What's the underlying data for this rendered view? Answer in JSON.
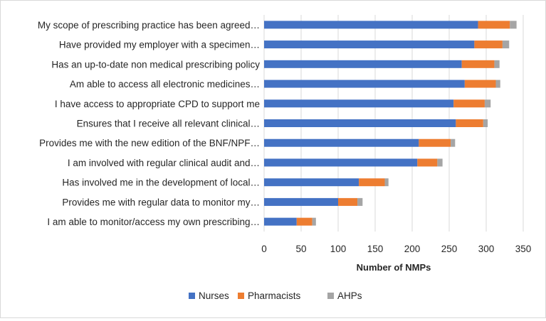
{
  "chart_data": {
    "type": "bar",
    "orientation": "horizontal",
    "stacked": true,
    "title": "",
    "xlabel": "Number of NMPs",
    "ylabel": "",
    "xlim": [
      0,
      350
    ],
    "xticks": [
      0,
      50,
      100,
      150,
      200,
      250,
      300,
      350
    ],
    "grid": true,
    "legend_position": "bottom",
    "categories": [
      "My scope of prescribing practice has been agreed…",
      "Have provided my employer with a specimen…",
      "Has an up-to-date non medical prescribing policy",
      "Am able to access all electronic medicines…",
      "I have access to appropriate CPD to support me",
      "Ensures that I receive all relevant clinical…",
      "Provides me with the new edition of the BNF/NPF…",
      "I am involved with regular clinical audit and…",
      "Has involved me in the development of local…",
      "Provides me with regular data to monitor my…",
      "I am able to monitor/access my own prescribing…"
    ],
    "series": [
      {
        "name": "Nurses",
        "color": "#4472c4",
        "values": [
          289,
          284,
          267,
          271,
          256,
          259,
          209,
          207,
          128,
          100,
          44
        ]
      },
      {
        "name": "Pharmacists",
        "color": "#ed7d31",
        "values": [
          43,
          38,
          44,
          42,
          42,
          37,
          43,
          27,
          35,
          26,
          21
        ]
      },
      {
        "name": "AHPs",
        "color": "#a5a5a5",
        "values": [
          9,
          9,
          7,
          6,
          8,
          6,
          6,
          7,
          5,
          7,
          5
        ]
      }
    ]
  }
}
